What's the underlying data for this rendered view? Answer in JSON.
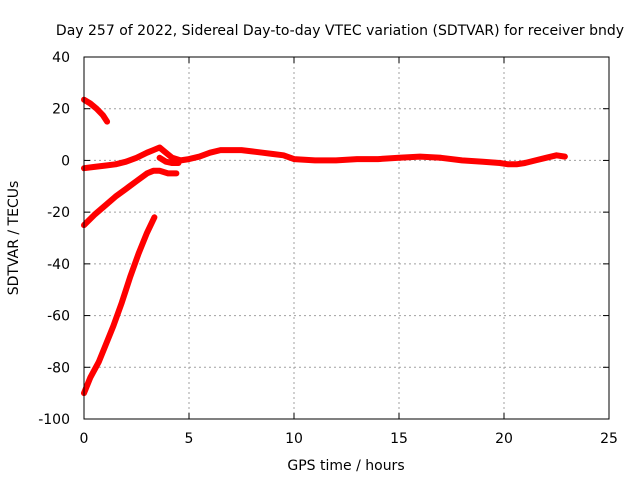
{
  "chart_data": {
    "type": "scatter",
    "title": "Day 257 of 2022, Sidereal Day-to-day VTEC variation (SDTVAR) for receiver bndy",
    "xlabel": "GPS time / hours",
    "ylabel": "SDTVAR / TECUs",
    "xlim": [
      0,
      25
    ],
    "ylim": [
      -100,
      40
    ],
    "x_ticks": [
      0,
      5,
      10,
      15,
      20,
      25
    ],
    "y_ticks": [
      -100,
      -80,
      -60,
      -40,
      -20,
      0,
      20,
      40
    ],
    "grid": true,
    "color": "#ff0000",
    "series": [
      {
        "name": "main",
        "x": [
          0.0,
          0.5,
          1.0,
          1.5,
          2.0,
          2.5,
          3.0,
          3.3,
          3.6,
          3.9,
          4.2,
          4.6,
          5.0,
          5.5,
          6.0,
          6.5,
          7.0,
          7.5,
          8.0,
          8.5,
          9.0,
          9.5,
          10.0,
          11.0,
          12.0,
          13.0,
          14.0,
          15.0,
          16.0,
          17.0,
          18.0,
          19.0,
          19.8,
          20.2,
          20.6,
          21.0,
          21.5,
          22.0,
          22.5,
          22.9
        ],
        "y": [
          -3,
          -2.5,
          -2,
          -1.5,
          -0.5,
          1,
          3,
          4,
          5,
          3,
          1,
          0,
          0.5,
          1.5,
          3,
          4,
          4,
          4,
          3.5,
          3,
          2.5,
          2,
          0.5,
          0,
          0,
          0.5,
          0.5,
          1,
          1.5,
          1,
          0,
          -0.5,
          -1,
          -1.5,
          -1.5,
          -1,
          0,
          1,
          2,
          1.5
        ]
      },
      {
        "name": "upper-short",
        "x": [
          0.0,
          0.3,
          0.6,
          0.9,
          1.1
        ],
        "y": [
          23.5,
          22,
          20,
          17.5,
          15
        ]
      },
      {
        "name": "rising",
        "x": [
          0.0,
          0.5,
          1.0,
          1.5,
          2.0,
          2.5,
          3.0,
          3.3,
          3.6,
          4.0,
          4.4
        ],
        "y": [
          -25,
          -21,
          -17.5,
          -14,
          -11,
          -8,
          -5,
          -4,
          -4,
          -5,
          -5
        ]
      },
      {
        "name": "dip",
        "x": [
          3.6,
          3.9,
          4.2,
          4.5
        ],
        "y": [
          1,
          -0.5,
          -1,
          -1
        ]
      },
      {
        "name": "steep",
        "x": [
          0.0,
          0.3,
          0.7,
          1.0,
          1.4,
          1.8,
          2.2,
          2.6,
          3.0,
          3.35
        ],
        "y": [
          -90,
          -84,
          -78,
          -72,
          -64,
          -55,
          -45,
          -36,
          -28,
          -22
        ]
      }
    ]
  }
}
